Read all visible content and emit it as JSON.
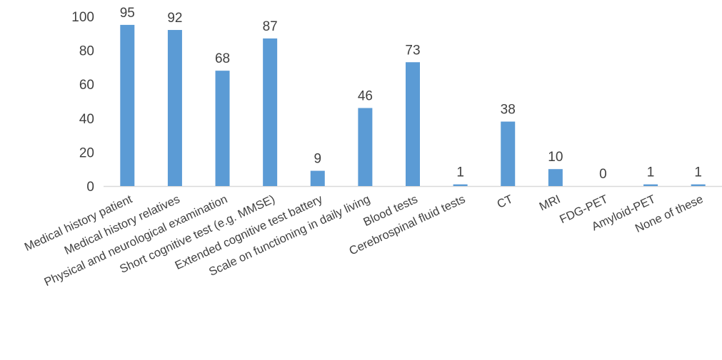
{
  "chart_data": {
    "type": "bar",
    "title": "",
    "xlabel": "",
    "ylabel": "",
    "categories": [
      "Medical history patient",
      "Medical history relatives",
      "Physical and neurological examination",
      "Short cognitive test (e.g. MMSE)",
      "Extended cognitive test battery",
      "Scale on functioning in daily living",
      "Blood tests",
      "Cerebrospinal fluid tests",
      "CT",
      "MRI",
      "FDG-PET",
      "Amyloid-PET",
      "None of these"
    ],
    "values": [
      95,
      92,
      68,
      87,
      9,
      46,
      73,
      1,
      38,
      10,
      0,
      1,
      1
    ],
    "ylim": [
      0,
      100
    ],
    "yticks": [
      0,
      20,
      40,
      60,
      80,
      100
    ],
    "grid": false,
    "legend": "none",
    "data_labels": true,
    "bar_color": "#5b9bd5",
    "axis_color": "#d9d9d9"
  }
}
